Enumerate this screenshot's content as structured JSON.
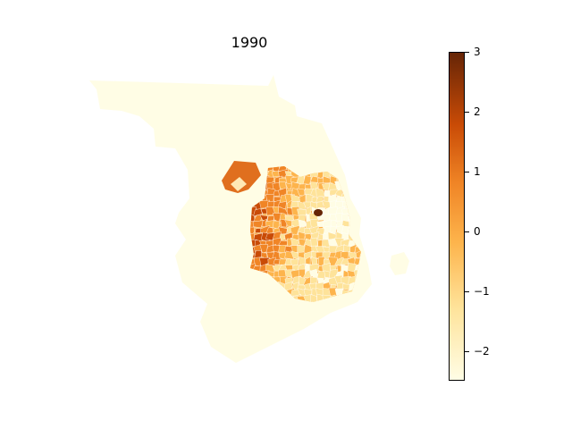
{
  "map": {
    "title": "1990",
    "colormap_name": "YlOrBr",
    "colors": {
      "background": "#ffffff",
      "region_base": "#fffde5",
      "scale_low": "#fffde5",
      "scale_mid_low": "#fee39a",
      "scale_mid": "#fdb44c",
      "scale_mid_high": "#f08526",
      "scale_high": "#c94b06",
      "scale_max": "#662506"
    }
  },
  "colorbar": {
    "min": -2.5,
    "max": 3,
    "ticks": [
      {
        "value": 3,
        "label": "3"
      },
      {
        "value": 2,
        "label": "2"
      },
      {
        "value": 1,
        "label": "1"
      },
      {
        "value": 0,
        "label": "0"
      },
      {
        "value": -1,
        "label": "−1"
      },
      {
        "value": -2,
        "label": "−2"
      }
    ]
  }
}
